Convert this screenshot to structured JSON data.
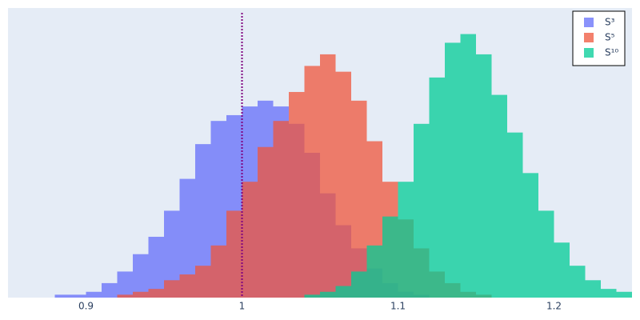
{
  "chart_data": {
    "type": "histogram",
    "bins": [
      0.85,
      0.86,
      0.87,
      0.88,
      0.89,
      0.9,
      0.91,
      0.92,
      0.93,
      0.94,
      0.95,
      0.96,
      0.97,
      0.98,
      0.99,
      1.0,
      1.01,
      1.02,
      1.03,
      1.04,
      1.05,
      1.06,
      1.07,
      1.08,
      1.09,
      1.1,
      1.11,
      1.12,
      1.13,
      1.14,
      1.15,
      1.16,
      1.17,
      1.18,
      1.19,
      1.2,
      1.21,
      1.22,
      1.23,
      1.24,
      1.25
    ],
    "series": [
      {
        "name": "S³",
        "color": "#636efa",
        "values": [
          0,
          0,
          0,
          1,
          1,
          2,
          5,
          9,
          15,
          21,
          30,
          41,
          53,
          61,
          63,
          66,
          68,
          66,
          60,
          50,
          36,
          25,
          17,
          10,
          5,
          2,
          1,
          0,
          0,
          0,
          0,
          0,
          0,
          0,
          0,
          0,
          0,
          0,
          0,
          0
        ]
      },
      {
        "name": "S⁵",
        "color": "#ef553b",
        "values": [
          0,
          0,
          0,
          0,
          0,
          0,
          0,
          1,
          2,
          3,
          6,
          8,
          11,
          18,
          30,
          40,
          52,
          61,
          71,
          80,
          84,
          78,
          68,
          54,
          40,
          27,
          17,
          9,
          5,
          2,
          1,
          0,
          0,
          0,
          0,
          0,
          0,
          0,
          0,
          0
        ]
      },
      {
        "name": "S¹⁰",
        "color": "#00cc96",
        "values": [
          0,
          0,
          0,
          0,
          0,
          0,
          0,
          0,
          0,
          0,
          0,
          0,
          0,
          0,
          0,
          0,
          0,
          0,
          0,
          1,
          2,
          4,
          9,
          18,
          28,
          40,
          60,
          76,
          88,
          91,
          84,
          70,
          57,
          43,
          30,
          19,
          11,
          6,
          3,
          2
        ]
      }
    ],
    "opacity": 0.75,
    "xlim": [
      0.85,
      1.25
    ],
    "xticks": [
      0.9,
      1,
      1.1,
      1.2
    ],
    "ylim": [
      0,
      100
    ],
    "vline": {
      "x": 1,
      "color": "#800080"
    },
    "legend": "top-right"
  }
}
